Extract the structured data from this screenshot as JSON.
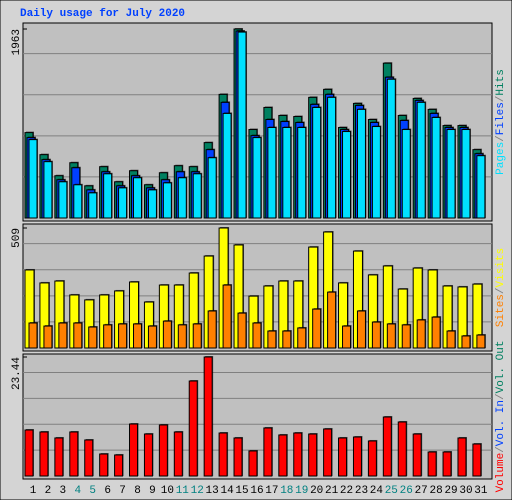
{
  "title": "Daily usage for July 2020",
  "legend_separator": "/",
  "highlight_indices": [
    3,
    4,
    10,
    11,
    17,
    18,
    24,
    25
  ],
  "highlight_color": "#008080",
  "chart_data": [
    {
      "type": "bar",
      "ylim": [
        0,
        1963
      ],
      "yticks": [
        1963
      ],
      "series": [
        {
          "name": "Hits",
          "color": "#008060",
          "values": [
            887,
            658,
            439,
            574,
            334,
            533,
            376,
            491,
            345,
            470,
            543,
            533,
            783,
            1284,
            1963,
            919,
            1148,
            1065,
            1054,
            1253,
            1336,
            940,
            1190,
            1023,
            1608,
            1065,
            1242,
            1128,
            960,
            960,
            710
          ]
        },
        {
          "name": "Files",
          "color": "#0040ff",
          "values": [
            835,
            606,
            397,
            522,
            292,
            480,
            334,
            439,
            313,
            397,
            480,
            480,
            710,
            1201,
            1942,
            856,
            1023,
            1002,
            992,
            1180,
            1284,
            919,
            1169,
            992,
            1462,
            1013,
            1221,
            1086,
            940,
            940,
            668
          ]
        },
        {
          "name": "Pages",
          "color": "#00e0ff",
          "values": [
            814,
            585,
            376,
            345,
            261,
            459,
            313,
            418,
            292,
            365,
            418,
            459,
            626,
            1086,
            1931,
            835,
            940,
            940,
            940,
            1148,
            1253,
            898,
            1128,
            950,
            1441,
            919,
            1201,
            1044,
            919,
            919,
            647
          ]
        }
      ]
    },
    {
      "type": "bar",
      "ylim": [
        0,
        509
      ],
      "yticks": [
        509
      ],
      "series": [
        {
          "name": "Visits",
          "color": "#ffff00",
          "values": [
            331,
            276,
            284,
            225,
            204,
            225,
            242,
            280,
            195,
            267,
            267,
            318,
            390,
            509,
            437,
            220,
            263,
            284,
            284,
            428,
            492,
            276,
            411,
            310,
            348,
            250,
            339,
            331,
            263,
            259,
            271
          ]
        },
        {
          "name": "Sites",
          "color": "#ff8000",
          "values": [
            106,
            93,
            106,
            106,
            89,
            98,
            102,
            102,
            93,
            114,
            98,
            102,
            157,
            267,
            148,
            106,
            72,
            72,
            85,
            165,
            237,
            93,
            157,
            110,
            102,
            98,
            119,
            131,
            72,
            51,
            55
          ]
        }
      ]
    },
    {
      "type": "bar",
      "ylim": [
        0,
        23.44
      ],
      "yticks": [
        23.44
      ],
      "categories": [
        "1",
        "2",
        "3",
        "4",
        "5",
        "6",
        "7",
        "8",
        "9",
        "10",
        "11",
        "12",
        "13",
        "14",
        "15",
        "16",
        "17",
        "18",
        "19",
        "20",
        "21",
        "22",
        "23",
        "24",
        "25",
        "26",
        "27",
        "28",
        "29",
        "30",
        "31"
      ],
      "series": [
        {
          "name": "Volume",
          "color": "#ff0000",
          "values": [
            9.06,
            8.67,
            7.49,
            8.67,
            7.09,
            4.33,
            4.14,
            10.24,
            8.27,
            10.05,
            8.67,
            18.71,
            23.44,
            8.47,
            7.49,
            4.93,
            9.46,
            8.08,
            8.47,
            8.27,
            9.26,
            7.49,
            7.68,
            6.9,
            11.62,
            10.64,
            8.27,
            4.73,
            4.73,
            7.49,
            6.3
          ]
        }
      ],
      "legend_extra": [
        {
          "name": "Vol. In",
          "color": "#0040ff"
        },
        {
          "name": "Vol. Out",
          "color": "#008060"
        }
      ]
    }
  ]
}
